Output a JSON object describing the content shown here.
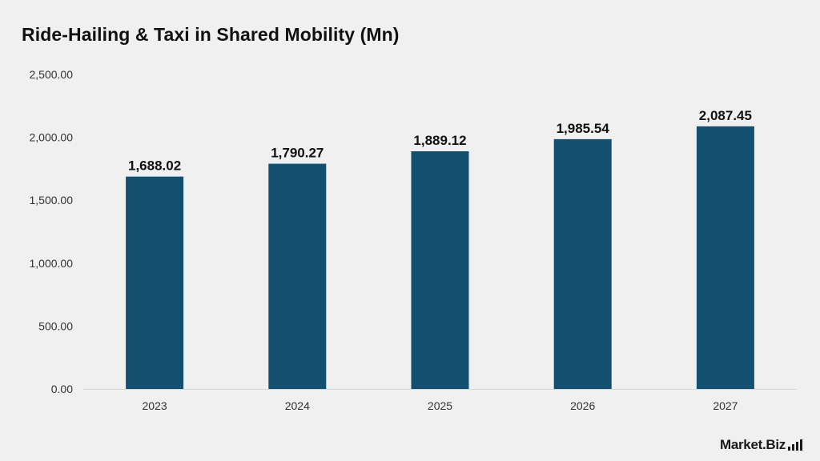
{
  "chart_data": {
    "type": "bar",
    "title": "Ride-Hailing & Taxi in Shared Mobility (Mn)",
    "categories": [
      "2023",
      "2024",
      "2025",
      "2026",
      "2027"
    ],
    "values": [
      1688.02,
      1790.27,
      1889.12,
      1985.54,
      2087.45
    ],
    "value_labels": [
      "1,688.02",
      "1,790.27",
      "1,889.12",
      "1,985.54",
      "2,087.45"
    ],
    "yticks": [
      "0.00",
      "500.00",
      "1,000.00",
      "1,500.00",
      "2,000.00",
      "2,500.00"
    ],
    "ytick_values": [
      0,
      500,
      1000,
      1500,
      2000,
      2500
    ],
    "ylim": [
      0,
      2500
    ],
    "xlabel": "",
    "ylabel": "",
    "grid": false,
    "bar_color": "#134f6e"
  },
  "brand": {
    "logo_text": "Market.Biz"
  }
}
